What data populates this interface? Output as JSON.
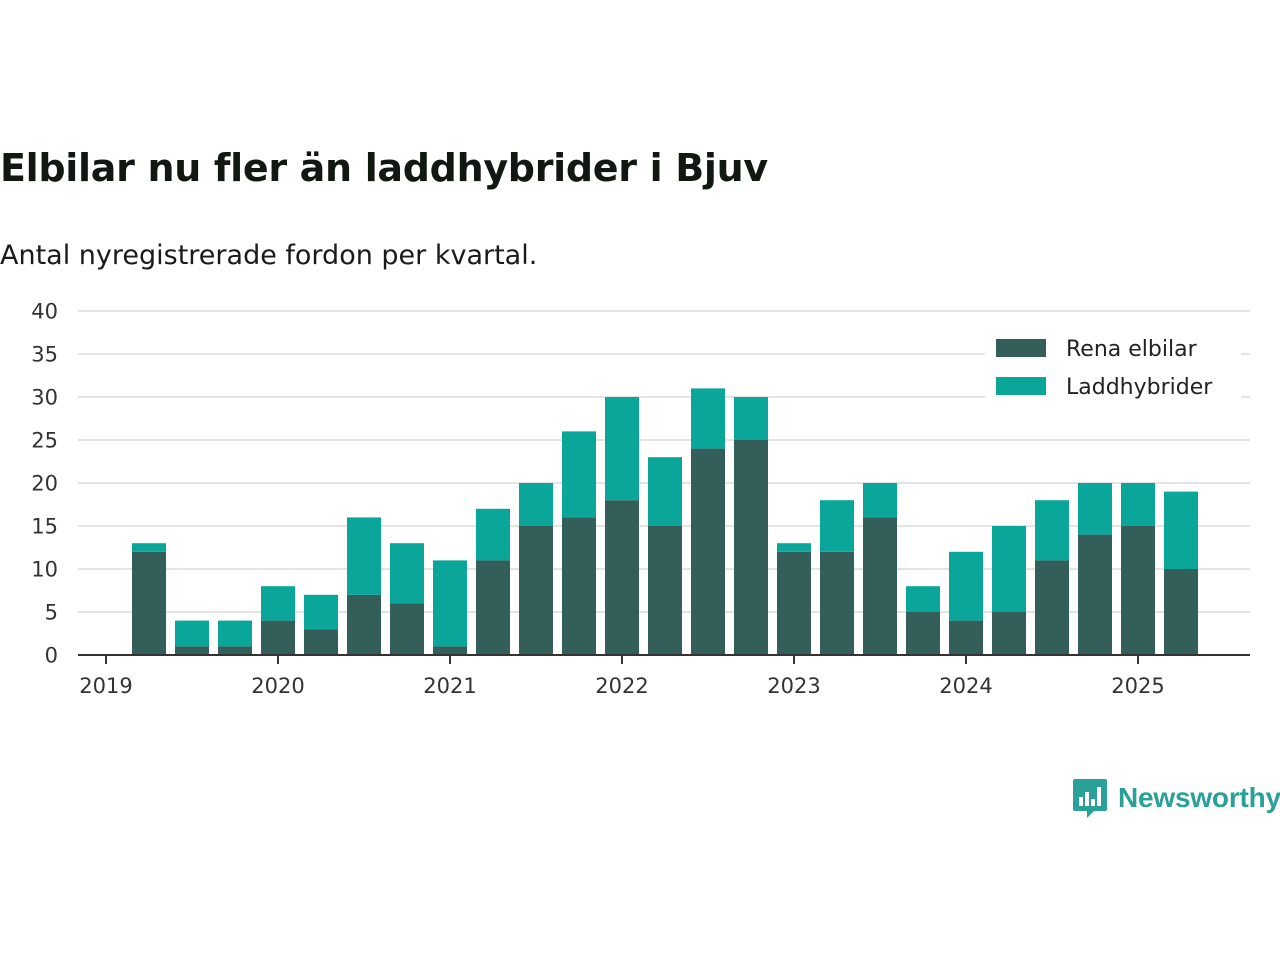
{
  "title": "Elbilar nu fler än laddhybrider i Bjuv",
  "subtitle": "Antal nyregistrerade fordon per kvartal.",
  "brand": {
    "name": "Newsworthy",
    "icon": "newsworthy-chart-icon"
  },
  "colors": {
    "electric": "#335e5a",
    "hybrid": "#0aa69a",
    "grid": "#dcdcdc",
    "axis": "#333333",
    "brand": "#2aa198"
  },
  "chart_data": {
    "type": "bar",
    "stacked": true,
    "title": "Elbilar nu fler än laddhybrider i Bjuv",
    "subtitle": "Antal nyregistrerade fordon per kvartal.",
    "xlabel": "",
    "ylabel": "",
    "ylim": [
      0,
      40
    ],
    "yticks": [
      0,
      5,
      10,
      15,
      20,
      25,
      30,
      35,
      40
    ],
    "xticks": [
      "2019",
      "2020",
      "2021",
      "2022",
      "2023",
      "2024",
      "2025"
    ],
    "grid": true,
    "legend_position": "top-right",
    "categories": [
      "2019 Q2",
      "2019 Q3",
      "2019 Q4",
      "2020 Q1",
      "2020 Q2",
      "2020 Q3",
      "2020 Q4",
      "2021 Q1",
      "2021 Q2",
      "2021 Q3",
      "2021 Q4",
      "2022 Q1",
      "2022 Q2",
      "2022 Q3",
      "2022 Q4",
      "2023 Q1",
      "2023 Q2",
      "2023 Q3",
      "2023 Q4",
      "2024 Q1",
      "2024 Q2",
      "2024 Q3",
      "2024 Q4",
      "2025 Q1",
      "2025 Q2"
    ],
    "series": [
      {
        "name": "Rena elbilar",
        "color": "#335e5a",
        "values": [
          12,
          1,
          1,
          4,
          3,
          7,
          6,
          1,
          11,
          15,
          16,
          18,
          15,
          24,
          25,
          12,
          12,
          16,
          5,
          4,
          5,
          11,
          14,
          15,
          10
        ]
      },
      {
        "name": "Laddhybrider",
        "color": "#0aa69a",
        "values": [
          1,
          3,
          3,
          4,
          4,
          9,
          7,
          10,
          6,
          5,
          10,
          12,
          8,
          7,
          5,
          1,
          6,
          4,
          3,
          8,
          10,
          7,
          6,
          5,
          9
        ]
      }
    ]
  }
}
